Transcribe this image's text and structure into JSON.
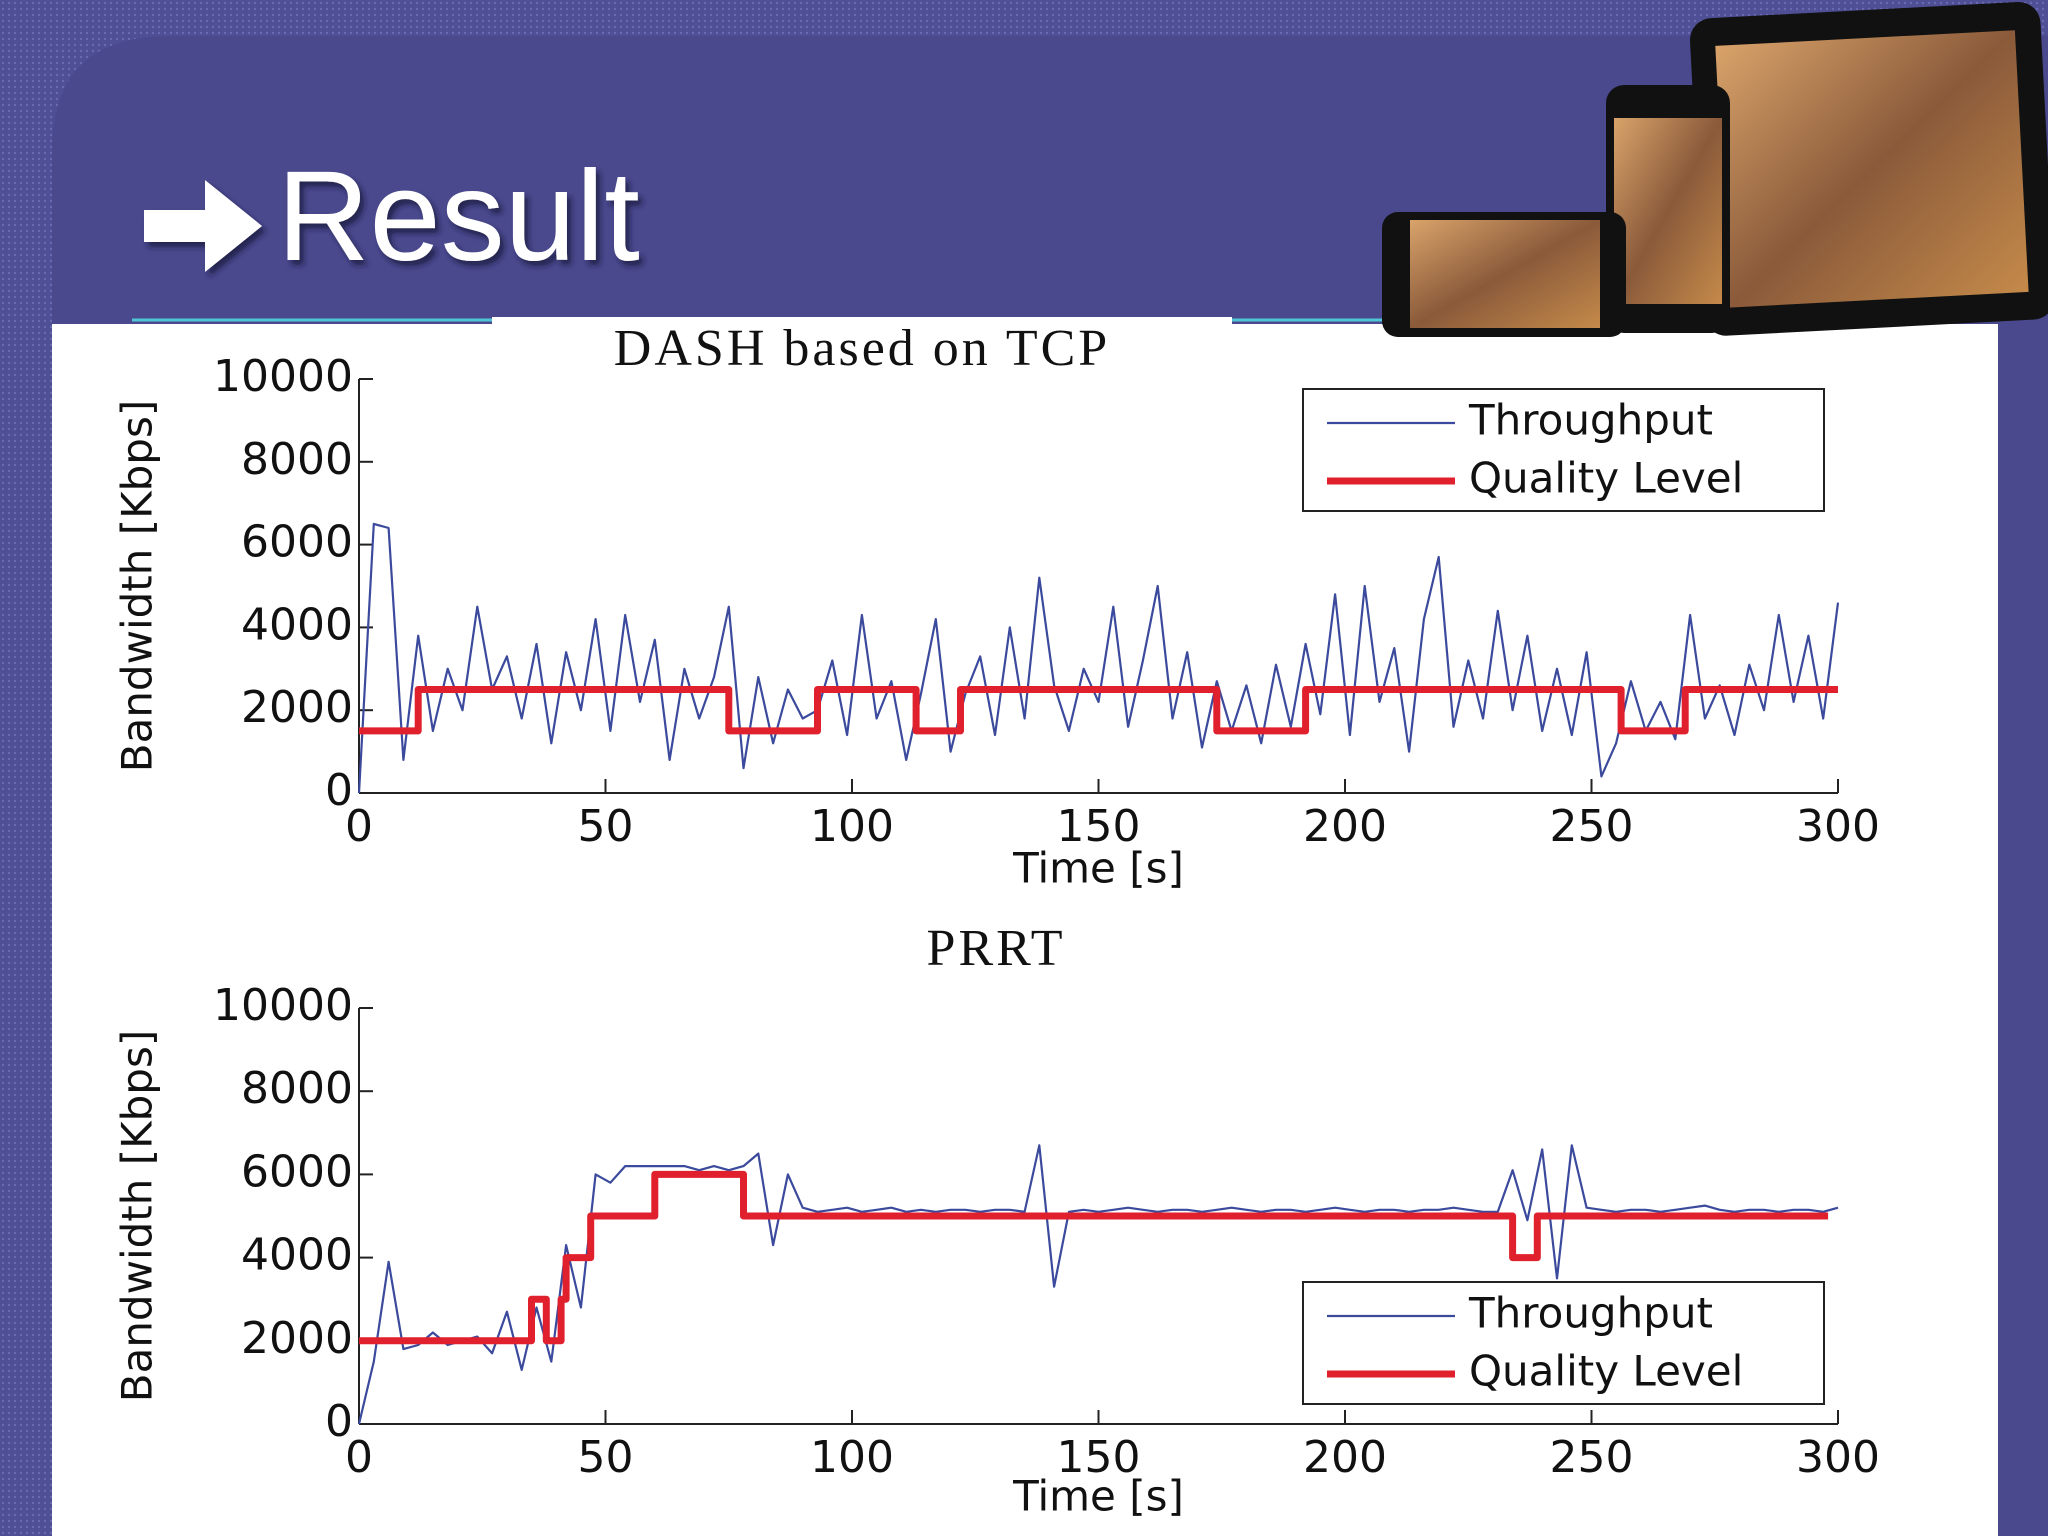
{
  "slide": {
    "title": "Result"
  },
  "chart_data": [
    {
      "type": "line",
      "title": "DASH based on TCP",
      "xlabel": "Time [s]",
      "ylabel": "Bandwidth [Kbps]",
      "xlim": [
        0,
        300
      ],
      "ylim": [
        0,
        10000
      ],
      "xticks": [
        0,
        50,
        100,
        150,
        200,
        250,
        300
      ],
      "yticks": [
        0,
        2000,
        4000,
        6000,
        8000,
        10000
      ],
      "legend": "upper right",
      "series": [
        {
          "name": "Throughput",
          "color": "#3b4a9c",
          "x": [
            0,
            3,
            6,
            9,
            12,
            15,
            18,
            21,
            24,
            27,
            30,
            33,
            36,
            39,
            42,
            45,
            48,
            51,
            54,
            57,
            60,
            63,
            66,
            69,
            72,
            75,
            78,
            81,
            84,
            87,
            90,
            93,
            96,
            99,
            102,
            105,
            108,
            111,
            114,
            117,
            120,
            123,
            126,
            129,
            132,
            135,
            138,
            141,
            144,
            147,
            150,
            153,
            156,
            159,
            162,
            165,
            168,
            171,
            174,
            177,
            180,
            183,
            186,
            189,
            192,
            195,
            198,
            201,
            204,
            207,
            210,
            213,
            216,
            219,
            222,
            225,
            228,
            231,
            234,
            237,
            240,
            243,
            246,
            249,
            252,
            255,
            258,
            261,
            264,
            267,
            270,
            273,
            276,
            279,
            282,
            285,
            288,
            291,
            294,
            297,
            300
          ],
          "values": [
            0,
            6500,
            6400,
            800,
            3800,
            1500,
            3000,
            2000,
            4500,
            2500,
            3300,
            1800,
            3600,
            1200,
            3400,
            2000,
            4200,
            1500,
            4300,
            2200,
            3700,
            800,
            3000,
            1800,
            2800,
            4500,
            600,
            2800,
            1200,
            2500,
            1800,
            2000,
            3200,
            1400,
            4300,
            1800,
            2700,
            800,
            2400,
            4200,
            1000,
            2400,
            3300,
            1400,
            4000,
            1800,
            5200,
            2600,
            1500,
            3000,
            2200,
            4500,
            1600,
            3200,
            5000,
            1800,
            3400,
            1100,
            2700,
            1500,
            2600,
            1200,
            3100,
            1600,
            3600,
            1900,
            4800,
            1400,
            5000,
            2200,
            3500,
            1000,
            4200,
            5700,
            1600,
            3200,
            1800,
            4400,
            2000,
            3800,
            1500,
            3000,
            1400,
            3400,
            400,
            1200,
            2700,
            1500,
            2200,
            1300,
            4300,
            1800,
            2600,
            1400,
            3100,
            2000,
            4300,
            2200,
            3800,
            1800,
            4600
          ]
        },
        {
          "name": "Quality Level",
          "color": "#e0202c",
          "x": [
            0,
            12,
            12,
            75,
            75,
            93,
            93,
            113,
            113,
            122,
            122,
            174,
            174,
            192,
            192,
            256,
            256,
            269,
            269,
            300
          ],
          "values": [
            1500,
            1500,
            2500,
            2500,
            1500,
            1500,
            2500,
            2500,
            1500,
            1500,
            2500,
            2500,
            1500,
            1500,
            2500,
            2500,
            1500,
            1500,
            2500,
            2500
          ]
        }
      ]
    },
    {
      "type": "line",
      "title": "PRRT",
      "xlabel": "Time [s]",
      "ylabel": "Bandwidth [Kbps]",
      "xlim": [
        0,
        300
      ],
      "ylim": [
        0,
        10000
      ],
      "xticks": [
        0,
        50,
        100,
        150,
        200,
        250,
        300
      ],
      "yticks": [
        0,
        2000,
        4000,
        6000,
        8000,
        10000
      ],
      "legend": "lower right",
      "series": [
        {
          "name": "Throughput",
          "color": "#3b4a9c",
          "x": [
            0,
            3,
            6,
            9,
            12,
            15,
            18,
            21,
            24,
            27,
            30,
            33,
            36,
            39,
            42,
            45,
            48,
            51,
            54,
            57,
            60,
            63,
            66,
            69,
            72,
            75,
            78,
            81,
            84,
            87,
            90,
            93,
            96,
            99,
            102,
            105,
            108,
            111,
            114,
            117,
            120,
            123,
            126,
            129,
            132,
            135,
            138,
            141,
            144,
            147,
            150,
            153,
            156,
            159,
            162,
            165,
            168,
            171,
            174,
            177,
            180,
            183,
            186,
            189,
            192,
            195,
            198,
            201,
            204,
            207,
            210,
            213,
            216,
            219,
            222,
            225,
            228,
            231,
            234,
            237,
            240,
            243,
            246,
            249,
            252,
            255,
            258,
            261,
            264,
            267,
            270,
            273,
            276,
            279,
            282,
            285,
            288,
            291,
            294,
            297,
            300
          ],
          "values": [
            0,
            1500,
            3900,
            1800,
            1900,
            2200,
            1900,
            2000,
            2100,
            1700,
            2700,
            1300,
            2800,
            1500,
            4300,
            2800,
            6000,
            5800,
            6200,
            6200,
            6200,
            6200,
            6200,
            6100,
            6200,
            6100,
            6200,
            6500,
            4300,
            6000,
            5200,
            5100,
            5150,
            5200,
            5100,
            5150,
            5200,
            5100,
            5150,
            5100,
            5150,
            5150,
            5100,
            5150,
            5150,
            5100,
            6700,
            3300,
            5100,
            5150,
            5100,
            5150,
            5200,
            5150,
            5100,
            5150,
            5150,
            5100,
            5150,
            5200,
            5150,
            5100,
            5150,
            5150,
            5100,
            5150,
            5200,
            5150,
            5100,
            5150,
            5150,
            5100,
            5150,
            5150,
            5200,
            5150,
            5100,
            5100,
            6100,
            4900,
            6600,
            3500,
            6700,
            5200,
            5150,
            5100,
            5150,
            5150,
            5100,
            5150,
            5200,
            5250,
            5150,
            5100,
            5150,
            5150,
            5100,
            5150,
            5150,
            5100,
            5200
          ]
        },
        {
          "name": "Quality Level",
          "color": "#e0202c",
          "x": [
            0,
            35,
            35,
            38,
            38,
            41,
            41,
            42,
            42,
            47,
            47,
            60,
            60,
            78,
            78,
            234,
            234,
            239,
            239,
            298
          ],
          "values": [
            2000,
            2000,
            3000,
            3000,
            2000,
            2000,
            3000,
            3000,
            4000,
            4000,
            5000,
            5000,
            6000,
            6000,
            5000,
            5000,
            4000,
            4000,
            5000,
            5000
          ]
        }
      ]
    }
  ]
}
